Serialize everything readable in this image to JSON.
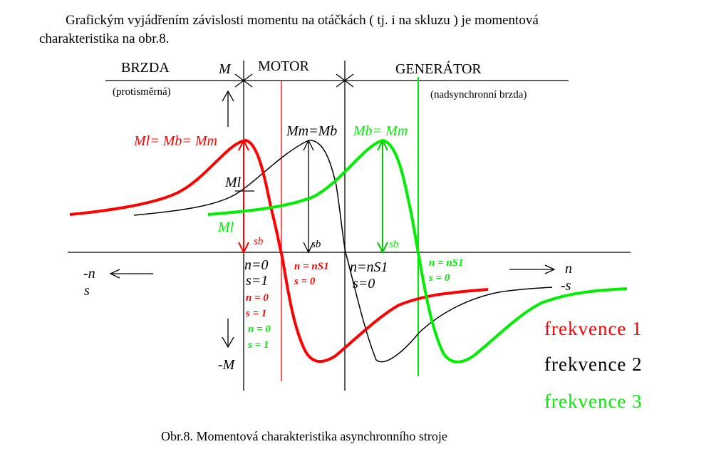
{
  "paragraph": {
    "line1": "Grafickým vyjádřením závislosti momentu na otáčkách ( tj. i na skluzu )  je momentová",
    "line2": "charakteristika na obr.8."
  },
  "regions": {
    "brake": "BRZDA",
    "brake_sub": "(protisměrná)",
    "motor": "MOTOR",
    "generator": "GENERÁTOR",
    "generator_sub": "(nadsynchronní brzda)"
  },
  "axes": {
    "m": "M",
    "minus_m": "-M",
    "minus_n": "-n",
    "s": "s",
    "n": "n",
    "minus_s": "-s"
  },
  "labels": {
    "red_peak": "Ml= Mb= Mm",
    "black_peak": "Mm=Mb",
    "green_peak": "Mb= Mm",
    "ml_black": "Ml",
    "ml_green": "Ml",
    "sb": "sb",
    "black_n0": "n=0",
    "black_s1": "s=1",
    "red_n0": "n = 0",
    "red_s1": "s = 1",
    "green_n0": "n = 0",
    "green_s1": "s = 1",
    "red_ns": "n = nS1",
    "red_s0": "s = 0",
    "black_ns": "n=nS1",
    "black_s0": "s=0",
    "green_ns": "n = nS1",
    "green_s0": "s = 0"
  },
  "legend": [
    {
      "name": "frekvence 1",
      "color": "#ff0000"
    },
    {
      "name": "frekvence 2",
      "color": "#000000"
    },
    {
      "name": "frekvence 3",
      "color": "#00ee00"
    }
  ],
  "caption": "Obr.8. Momentová charakteristika asynchronního stroje"
}
